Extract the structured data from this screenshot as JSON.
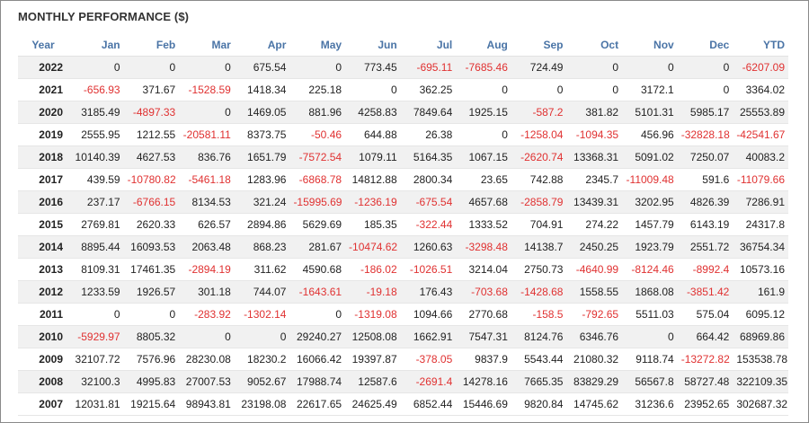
{
  "title": "MONTHLY PERFORMANCE ($)",
  "colors": {
    "header": "#4a74a6",
    "negative": "#e03131",
    "stripe": "#f1f1f1"
  },
  "columns": [
    "Year",
    "Jan",
    "Feb",
    "Mar",
    "Apr",
    "May",
    "Jun",
    "Jul",
    "Aug",
    "Sep",
    "Oct",
    "Nov",
    "Dec",
    "YTD"
  ],
  "rows": [
    [
      "2022",
      "0",
      "0",
      "0",
      "675.54",
      "0",
      "773.45",
      "-695.11",
      "-7685.46",
      "724.49",
      "0",
      "0",
      "0",
      "-6207.09"
    ],
    [
      "2021",
      "-656.93",
      "371.67",
      "-1528.59",
      "1418.34",
      "225.18",
      "0",
      "362.25",
      "0",
      "0",
      "0",
      "3172.1",
      "0",
      "3364.02"
    ],
    [
      "2020",
      "3185.49",
      "-4897.33",
      "0",
      "1469.05",
      "881.96",
      "4258.83",
      "7849.64",
      "1925.15",
      "-587.2",
      "381.82",
      "5101.31",
      "5985.17",
      "25553.89"
    ],
    [
      "2019",
      "2555.95",
      "1212.55",
      "-20581.11",
      "8373.75",
      "-50.46",
      "644.88",
      "26.38",
      "0",
      "-1258.04",
      "-1094.35",
      "456.96",
      "-32828.18",
      "-42541.67"
    ],
    [
      "2018",
      "10140.39",
      "4627.53",
      "836.76",
      "1651.79",
      "-7572.54",
      "1079.11",
      "5164.35",
      "1067.15",
      "-2620.74",
      "13368.31",
      "5091.02",
      "7250.07",
      "40083.2"
    ],
    [
      "2017",
      "439.59",
      "-10780.82",
      "-5461.18",
      "1283.96",
      "-6868.78",
      "14812.88",
      "2800.34",
      "23.65",
      "742.88",
      "2345.7",
      "-11009.48",
      "591.6",
      "-11079.66"
    ],
    [
      "2016",
      "237.17",
      "-6766.15",
      "8134.53",
      "321.24",
      "-15995.69",
      "-1236.19",
      "-675.54",
      "4657.68",
      "-2858.79",
      "13439.31",
      "3202.95",
      "4826.39",
      "7286.91"
    ],
    [
      "2015",
      "2769.81",
      "2620.33",
      "626.57",
      "2894.86",
      "5629.69",
      "185.35",
      "-322.44",
      "1333.52",
      "704.91",
      "274.22",
      "1457.79",
      "6143.19",
      "24317.8"
    ],
    [
      "2014",
      "8895.44",
      "16093.53",
      "2063.48",
      "868.23",
      "281.67",
      "-10474.62",
      "1260.63",
      "-3298.48",
      "14138.7",
      "2450.25",
      "1923.79",
      "2551.72",
      "36754.34"
    ],
    [
      "2013",
      "8109.31",
      "17461.35",
      "-2894.19",
      "311.62",
      "4590.68",
      "-186.02",
      "-1026.51",
      "3214.04",
      "2750.73",
      "-4640.99",
      "-8124.46",
      "-8992.4",
      "10573.16"
    ],
    [
      "2012",
      "1233.59",
      "1926.57",
      "301.18",
      "744.07",
      "-1643.61",
      "-19.18",
      "176.43",
      "-703.68",
      "-1428.68",
      "1558.55",
      "1868.08",
      "-3851.42",
      "161.9"
    ],
    [
      "2011",
      "0",
      "0",
      "-283.92",
      "-1302.14",
      "0",
      "-1319.08",
      "1094.66",
      "2770.68",
      "-158.5",
      "-792.65",
      "5511.03",
      "575.04",
      "6095.12"
    ],
    [
      "2010",
      "-5929.97",
      "8805.32",
      "0",
      "0",
      "29240.27",
      "12508.08",
      "1662.91",
      "7547.31",
      "8124.76",
      "6346.76",
      "0",
      "664.42",
      "68969.86"
    ],
    [
      "2009",
      "32107.72",
      "7576.96",
      "28230.08",
      "18230.2",
      "16066.42",
      "19397.87",
      "-378.05",
      "9837.9",
      "5543.44",
      "21080.32",
      "9118.74",
      "-13272.82",
      "153538.78"
    ],
    [
      "2008",
      "32100.3",
      "4995.83",
      "27007.53",
      "9052.67",
      "17988.74",
      "12587.6",
      "-2691.4",
      "14278.16",
      "7665.35",
      "83829.29",
      "56567.8",
      "58727.48",
      "322109.35"
    ],
    [
      "2007",
      "12031.81",
      "19215.64",
      "98943.81",
      "23198.08",
      "22617.65",
      "24625.49",
      "6852.44",
      "15446.69",
      "9820.84",
      "14745.62",
      "31236.6",
      "23952.65",
      "302687.32"
    ]
  ]
}
